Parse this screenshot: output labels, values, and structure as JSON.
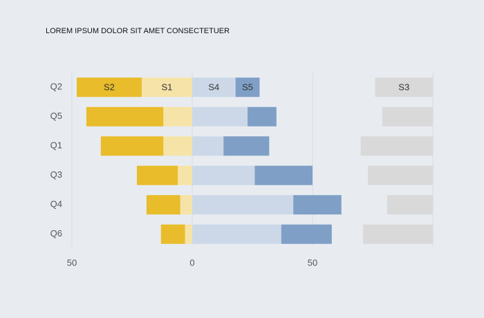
{
  "chart_data": {
    "type": "diverging-bar",
    "title": "LOREM IPSUM DOLOR SIT AMET CONSECTETUER",
    "categories": [
      "Q2",
      "Q5",
      "Q1",
      "Q3",
      "Q4",
      "Q6"
    ],
    "series": [
      {
        "name": "S1",
        "color": "#f5e3a8",
        "values": [
          21,
          12,
          12,
          6,
          5,
          3
        ]
      },
      {
        "name": "S2",
        "color": "#e8bc2a",
        "values": [
          27,
          32,
          26,
          17,
          14,
          10
        ]
      },
      {
        "name": "S4",
        "color": "#ccd8e8",
        "values": [
          18,
          23,
          13,
          26,
          42,
          37
        ]
      },
      {
        "name": "S5",
        "color": "#7f9fc6",
        "values": [
          10,
          12,
          19,
          24,
          20,
          21
        ]
      },
      {
        "name": "S3",
        "color": "#d9d9d9",
        "values": [
          24,
          21,
          30,
          27,
          19,
          29
        ]
      }
    ],
    "xlim": [
      -50,
      100
    ],
    "xticks": [
      {
        "value": -50,
        "label": "50"
      },
      0,
      50
    ],
    "grid": true
  }
}
